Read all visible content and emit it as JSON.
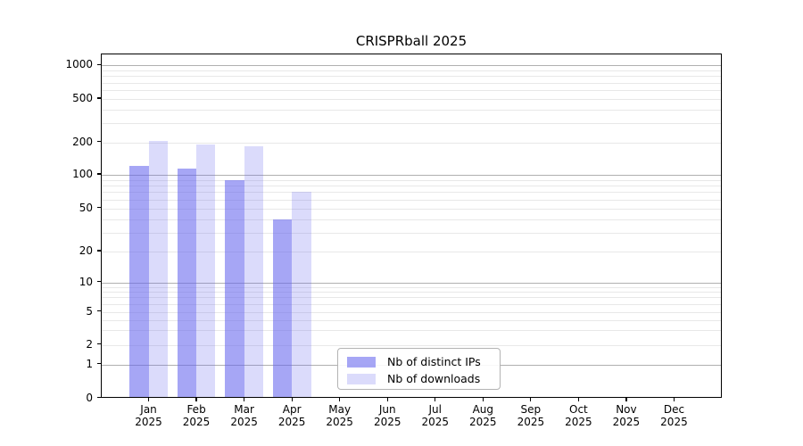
{
  "title": "CRISPRball 2025",
  "chart_data": {
    "type": "bar",
    "title": "CRISPRball 2025",
    "xlabel": "",
    "ylabel": "",
    "x_year": "2025",
    "categories": [
      "Jan",
      "Feb",
      "Mar",
      "Apr",
      "May",
      "Jun",
      "Jul",
      "Aug",
      "Sep",
      "Oct",
      "Nov",
      "Dec"
    ],
    "series": [
      {
        "name": "Nb of distinct IPs",
        "color": "rgba(99,99,237,0.57)",
        "values": [
          120,
          115,
          90,
          40,
          0,
          0,
          0,
          0,
          0,
          0,
          0,
          0
        ]
      },
      {
        "name": "Nb of downloads",
        "color": "rgba(99,99,237,0.23)",
        "values": [
          205,
          190,
          185,
          70,
          0,
          0,
          0,
          0,
          0,
          0,
          0,
          0
        ]
      }
    ],
    "yscale": "symlog",
    "yticks": [
      0,
      1,
      2,
      5,
      10,
      20,
      50,
      100,
      200,
      500,
      1000
    ],
    "ylim": [
      0,
      1200
    ],
    "grid": "on",
    "legend_position": "lower center"
  },
  "legend": {
    "items": [
      "Nb of distinct IPs",
      "Nb of downloads"
    ]
  },
  "colors": {
    "bar_base": "#6363ed",
    "grid_major": "#b0b0b0",
    "grid_minor": "#e8e8e8",
    "spine": "#000000",
    "background": "#ffffff"
  }
}
